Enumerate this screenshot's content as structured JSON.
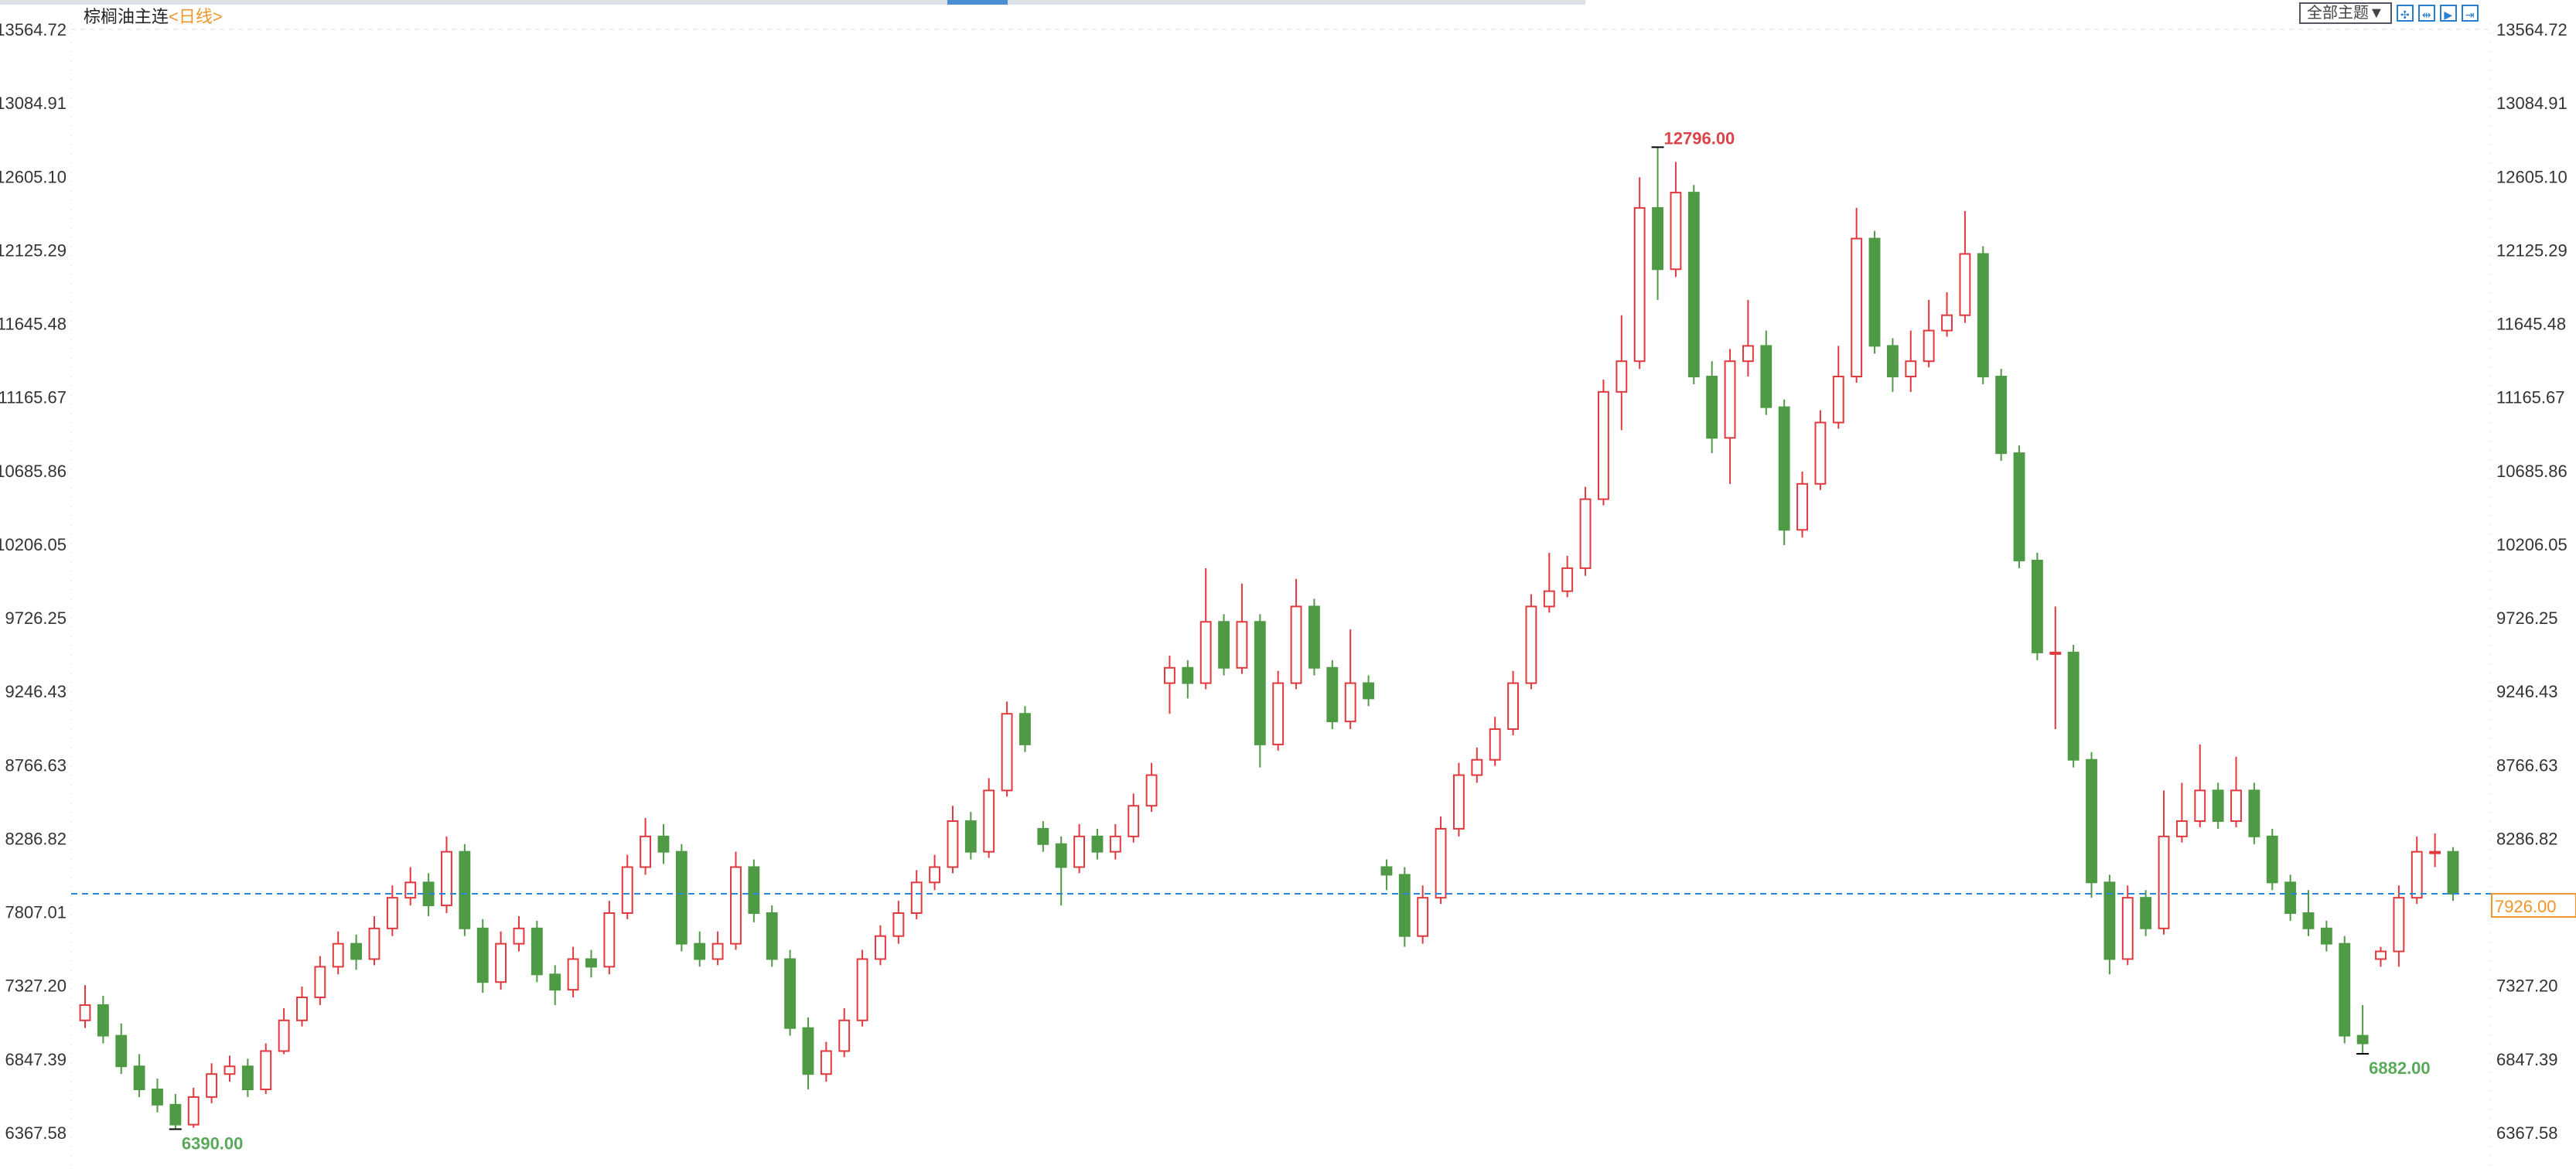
{
  "header": {
    "title": "棕榈油主连",
    "period": "<日线>",
    "theme_button": "全部主题▼",
    "tools": [
      "crosshair-icon",
      "zoom-range-icon",
      "play-forward-icon",
      "goto-end-icon"
    ]
  },
  "colors": {
    "up": "#e0393e",
    "down": "#4f9a45",
    "last_price_line": "#2a86d6",
    "last_price_label": "#f0962a",
    "high_label": "#d9454a",
    "low_label": "#5aa85a"
  },
  "chart_data": {
    "type": "candlestick",
    "title": "棕榈油主连",
    "y_ticks": [
      "13564.72",
      "13084.91",
      "12605.10",
      "12125.29",
      "11645.48",
      "11165.67",
      "10685.86",
      "10206.05",
      "9726.25",
      "9246.43",
      "8766.63",
      "8286.82",
      "7807.01",
      "7327.20",
      "6847.39",
      "6367.58"
    ],
    "ylim": [
      6367.58,
      13564.72
    ],
    "last_price": {
      "value": 7926,
      "label": "7926.00"
    },
    "annotations": [
      {
        "label": "12796.00",
        "value": 12796,
        "type": "high",
        "index": 87
      },
      {
        "label": "6390.00",
        "value": 6390,
        "type": "low",
        "index": 5
      },
      {
        "label": "6882.00",
        "value": 6882,
        "type": "low",
        "index": 126
      }
    ],
    "ohlc": [
      [
        7100,
        7330,
        7050,
        7200
      ],
      [
        7200,
        7260,
        6950,
        7000
      ],
      [
        7000,
        7080,
        6750,
        6800
      ],
      [
        6800,
        6880,
        6600,
        6650
      ],
      [
        6650,
        6720,
        6500,
        6550
      ],
      [
        6550,
        6620,
        6390,
        6420
      ],
      [
        6420,
        6660,
        6400,
        6600
      ],
      [
        6600,
        6820,
        6560,
        6750
      ],
      [
        6750,
        6870,
        6700,
        6800
      ],
      [
        6800,
        6850,
        6600,
        6650
      ],
      [
        6650,
        6950,
        6620,
        6900
      ],
      [
        6900,
        7180,
        6880,
        7100
      ],
      [
        7100,
        7320,
        7060,
        7250
      ],
      [
        7250,
        7520,
        7200,
        7450
      ],
      [
        7450,
        7680,
        7400,
        7600
      ],
      [
        7600,
        7660,
        7430,
        7500
      ],
      [
        7500,
        7780,
        7460,
        7700
      ],
      [
        7700,
        7980,
        7650,
        7900
      ],
      [
        7900,
        8100,
        7850,
        8000
      ],
      [
        8000,
        8060,
        7780,
        7850
      ],
      [
        7850,
        8300,
        7800,
        8200
      ],
      [
        8200,
        8250,
        7650,
        7700
      ],
      [
        7700,
        7760,
        7280,
        7350
      ],
      [
        7350,
        7680,
        7300,
        7600
      ],
      [
        7600,
        7780,
        7550,
        7700
      ],
      [
        7700,
        7750,
        7350,
        7400
      ],
      [
        7400,
        7460,
        7200,
        7300
      ],
      [
        7300,
        7580,
        7250,
        7500
      ],
      [
        7500,
        7560,
        7380,
        7450
      ],
      [
        7450,
        7880,
        7400,
        7800
      ],
      [
        7800,
        8180,
        7760,
        8100
      ],
      [
        8100,
        8420,
        8050,
        8300
      ],
      [
        8300,
        8380,
        8120,
        8200
      ],
      [
        8200,
        8250,
        7550,
        7600
      ],
      [
        7600,
        7680,
        7450,
        7500
      ],
      [
        7500,
        7680,
        7460,
        7600
      ],
      [
        7600,
        8200,
        7560,
        8100
      ],
      [
        8100,
        8150,
        7740,
        7800
      ],
      [
        7800,
        7850,
        7450,
        7500
      ],
      [
        7500,
        7560,
        7000,
        7050
      ],
      [
        7050,
        7120,
        6650,
        6750
      ],
      [
        6750,
        6960,
        6700,
        6900
      ],
      [
        6900,
        7180,
        6860,
        7100
      ],
      [
        7100,
        7560,
        7060,
        7500
      ],
      [
        7500,
        7720,
        7460,
        7650
      ],
      [
        7650,
        7880,
        7600,
        7800
      ],
      [
        7800,
        8080,
        7760,
        8000
      ],
      [
        8000,
        8180,
        7950,
        8100
      ],
      [
        8100,
        8500,
        8060,
        8400
      ],
      [
        8400,
        8460,
        8150,
        8200
      ],
      [
        8200,
        8680,
        8160,
        8600
      ],
      [
        8600,
        9180,
        8560,
        9100
      ],
      [
        9100,
        9150,
        8850,
        8900
      ],
      [
        8350,
        8400,
        8200,
        8250
      ],
      [
        8250,
        8300,
        7850,
        8100
      ],
      [
        8100,
        8380,
        8060,
        8300
      ],
      [
        8300,
        8350,
        8150,
        8200
      ],
      [
        8200,
        8380,
        8150,
        8300
      ],
      [
        8300,
        8580,
        8260,
        8500
      ],
      [
        8500,
        8780,
        8460,
        8700
      ],
      [
        9300,
        9480,
        9100,
        9400
      ],
      [
        9400,
        9450,
        9200,
        9300
      ],
      [
        9300,
        10050,
        9260,
        9700
      ],
      [
        9700,
        9750,
        9350,
        9400
      ],
      [
        9400,
        9950,
        9360,
        9700
      ],
      [
        9700,
        9750,
        8750,
        8900
      ],
      [
        8900,
        9380,
        8860,
        9300
      ],
      [
        9300,
        9980,
        9260,
        9800
      ],
      [
        9800,
        9850,
        9350,
        9400
      ],
      [
        9400,
        9450,
        9000,
        9050
      ],
      [
        9050,
        9650,
        9000,
        9300
      ],
      [
        9300,
        9350,
        9150,
        9200
      ],
      [
        8100,
        8150,
        7950,
        8050
      ],
      [
        8050,
        8100,
        7580,
        7650
      ],
      [
        7650,
        7980,
        7600,
        7900
      ],
      [
        7900,
        8430,
        7860,
        8350
      ],
      [
        8350,
        8780,
        8300,
        8700
      ],
      [
        8700,
        8880,
        8650,
        8800
      ],
      [
        8800,
        9080,
        8760,
        9000
      ],
      [
        9000,
        9380,
        8960,
        9300
      ],
      [
        9300,
        9880,
        9260,
        9800
      ],
      [
        9800,
        10150,
        9760,
        9900
      ],
      [
        9900,
        10130,
        9860,
        10050
      ],
      [
        10050,
        10580,
        10000,
        10500
      ],
      [
        10500,
        11280,
        10460,
        11200
      ],
      [
        11200,
        11700,
        10950,
        11400
      ],
      [
        11400,
        12600,
        11350,
        12400
      ],
      [
        12400,
        12796,
        11800,
        12000
      ],
      [
        12000,
        12700,
        11950,
        12500
      ],
      [
        12500,
        12550,
        11250,
        11300
      ],
      [
        11300,
        11400,
        10800,
        10900
      ],
      [
        10900,
        11480,
        10600,
        11400
      ],
      [
        11400,
        11800,
        11300,
        11500
      ],
      [
        11500,
        11600,
        11050,
        11100
      ],
      [
        11100,
        11150,
        10200,
        10300
      ],
      [
        10300,
        10680,
        10250,
        10600
      ],
      [
        10600,
        11080,
        10560,
        11000
      ],
      [
        11000,
        11500,
        10960,
        11300
      ],
      [
        11300,
        12400,
        11260,
        12200
      ],
      [
        12200,
        12250,
        11450,
        11500
      ],
      [
        11500,
        11550,
        11200,
        11300
      ],
      [
        11300,
        11600,
        11200,
        11400
      ],
      [
        11400,
        11800,
        11360,
        11600
      ],
      [
        11600,
        11850,
        11560,
        11700
      ],
      [
        11700,
        12380,
        11650,
        12100
      ],
      [
        12100,
        12150,
        11250,
        11300
      ],
      [
        11300,
        11350,
        10750,
        10800
      ],
      [
        10800,
        10850,
        10050,
        10100
      ],
      [
        10100,
        10150,
        9450,
        9500
      ],
      [
        9500,
        9800,
        9000,
        9500
      ],
      [
        9500,
        9550,
        8750,
        8800
      ],
      [
        8800,
        8850,
        7900,
        8000
      ],
      [
        8000,
        8050,
        7400,
        7500
      ],
      [
        7500,
        7980,
        7460,
        7900
      ],
      [
        7900,
        7950,
        7650,
        7700
      ],
      [
        7700,
        8600,
        7660,
        8300
      ],
      [
        8300,
        8650,
        8260,
        8400
      ],
      [
        8400,
        8900,
        8360,
        8600
      ],
      [
        8600,
        8650,
        8350,
        8400
      ],
      [
        8400,
        8820,
        8360,
        8600
      ],
      [
        8600,
        8650,
        8250,
        8300
      ],
      [
        8300,
        8350,
        7950,
        8000
      ],
      [
        8000,
        8050,
        7750,
        7800
      ],
      [
        7800,
        7950,
        7650,
        7700
      ],
      [
        7700,
        7750,
        7550,
        7600
      ],
      [
        7600,
        7650,
        6950,
        7000
      ],
      [
        7000,
        7200,
        6882,
        6950
      ],
      [
        7500,
        7580,
        7450,
        7550
      ],
      [
        7550,
        7980,
        7450,
        7900
      ],
      [
        7900,
        8300,
        7860,
        8200
      ],
      [
        8200,
        8320,
        8100,
        8200
      ],
      [
        8200,
        8230,
        7880,
        7926
      ]
    ]
  }
}
